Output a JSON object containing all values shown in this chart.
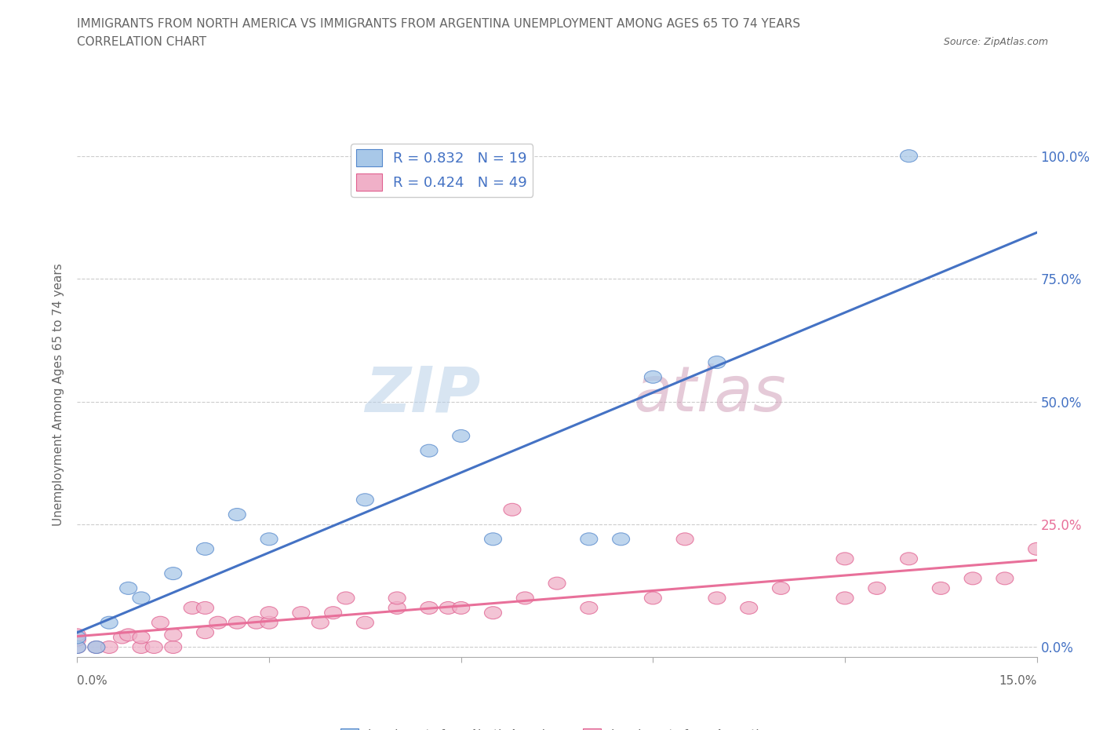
{
  "title_line1": "IMMIGRANTS FROM NORTH AMERICA VS IMMIGRANTS FROM ARGENTINA UNEMPLOYMENT AMONG AGES 65 TO 74 YEARS",
  "title_line2": "CORRELATION CHART",
  "source_text": "Source: ZipAtlas.com",
  "ylabel": "Unemployment Among Ages 65 to 74 years",
  "xlim": [
    0.0,
    0.15
  ],
  "ylim": [
    -0.02,
    1.05
  ],
  "x_ticks": [
    0.0,
    0.03,
    0.06,
    0.09,
    0.12,
    0.15
  ],
  "x_tick_labels": [
    "0.0%",
    "",
    "",
    "",
    "",
    "15.0%"
  ],
  "y_ticks": [
    0.0,
    0.25,
    0.5,
    0.75,
    1.0
  ],
  "y_tick_labels_right": [
    "0.0%",
    "25.0%",
    "50.0%",
    "75.0%",
    "100.0%"
  ],
  "watermark_zip": "ZIP",
  "watermark_atlas": "atlas",
  "blue_color": "#A8C8E8",
  "pink_color": "#F0B0C8",
  "blue_edge_color": "#5588CC",
  "pink_edge_color": "#E06090",
  "blue_line_color": "#4472C4",
  "pink_line_color": "#E8709A",
  "blue_label": "Immigrants from North America",
  "pink_label": "Immigrants from Argentina",
  "R_blue": 0.832,
  "N_blue": 19,
  "R_pink": 0.424,
  "N_pink": 49,
  "blue_x": [
    0.0,
    0.0,
    0.003,
    0.005,
    0.008,
    0.01,
    0.015,
    0.02,
    0.025,
    0.03,
    0.045,
    0.055,
    0.06,
    0.065,
    0.08,
    0.085,
    0.09,
    0.1,
    0.13
  ],
  "blue_y": [
    0.0,
    0.02,
    0.0,
    0.05,
    0.12,
    0.1,
    0.15,
    0.2,
    0.27,
    0.22,
    0.3,
    0.4,
    0.43,
    0.22,
    0.22,
    0.22,
    0.55,
    0.58,
    1.0
  ],
  "pink_x": [
    0.0,
    0.0,
    0.0,
    0.003,
    0.005,
    0.007,
    0.008,
    0.01,
    0.01,
    0.012,
    0.013,
    0.015,
    0.015,
    0.018,
    0.02,
    0.02,
    0.022,
    0.025,
    0.028,
    0.03,
    0.03,
    0.035,
    0.038,
    0.04,
    0.042,
    0.045,
    0.05,
    0.05,
    0.055,
    0.058,
    0.06,
    0.065,
    0.068,
    0.07,
    0.075,
    0.08,
    0.09,
    0.095,
    0.1,
    0.105,
    0.11,
    0.12,
    0.12,
    0.125,
    0.13,
    0.135,
    0.14,
    0.145,
    0.15
  ],
  "pink_y": [
    0.0,
    0.015,
    0.025,
    0.0,
    0.0,
    0.02,
    0.025,
    0.0,
    0.02,
    0.0,
    0.05,
    0.0,
    0.025,
    0.08,
    0.03,
    0.08,
    0.05,
    0.05,
    0.05,
    0.05,
    0.07,
    0.07,
    0.05,
    0.07,
    0.1,
    0.05,
    0.08,
    0.1,
    0.08,
    0.08,
    0.08,
    0.07,
    0.28,
    0.1,
    0.13,
    0.08,
    0.1,
    0.22,
    0.1,
    0.08,
    0.12,
    0.1,
    0.18,
    0.12,
    0.18,
    0.12,
    0.14,
    0.14,
    0.2
  ],
  "background_color": "#FFFFFF",
  "grid_color": "#CCCCCC",
  "title_color": "#666666",
  "tick_label_color": "#666666",
  "right_y_colors": [
    "#4472C4",
    "#E8709A",
    "#4472C4",
    "#4472C4",
    "#4472C4"
  ],
  "legend_text_color": "#4472C4"
}
